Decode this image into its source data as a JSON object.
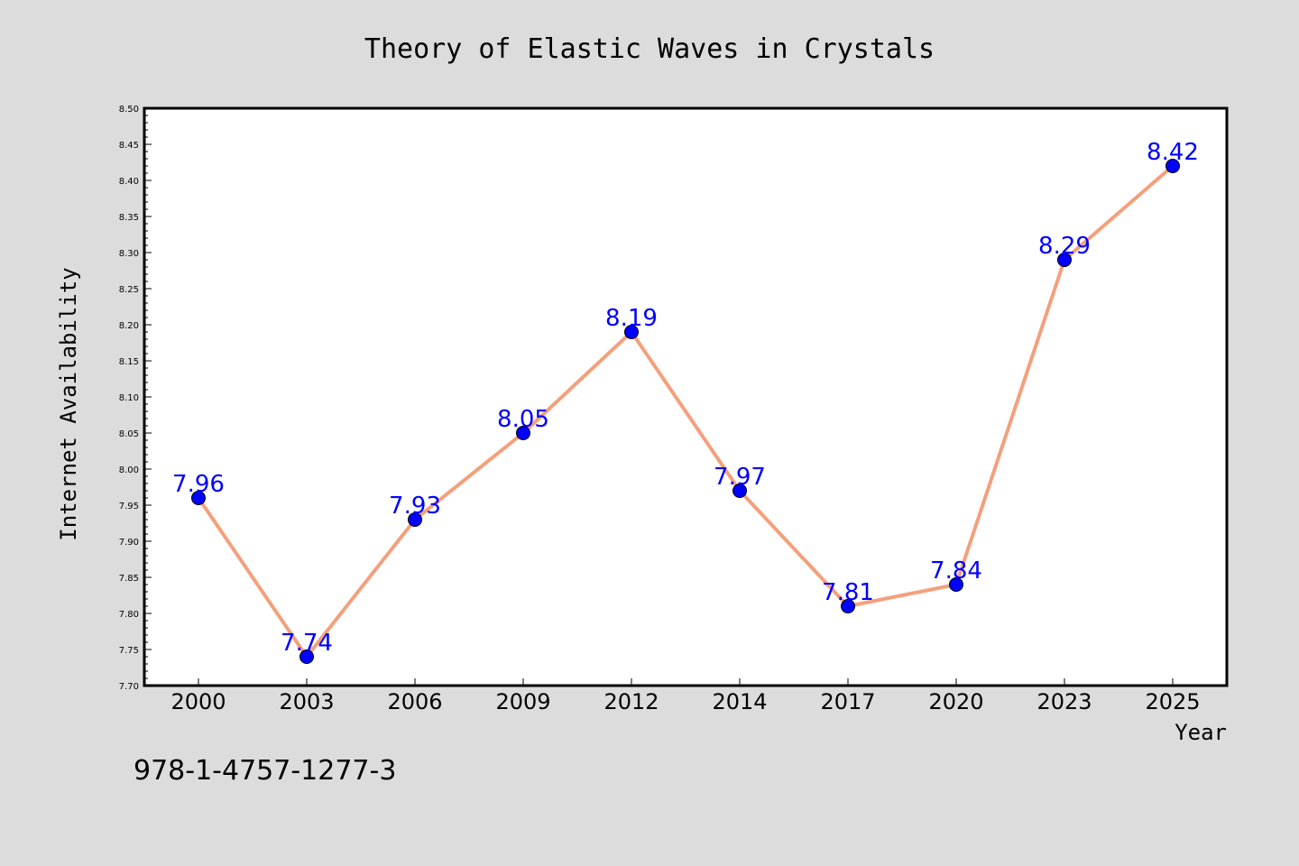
{
  "chart_data": {
    "type": "line",
    "title": "Theory of Elastic Waves in Crystals",
    "xlabel": "Year",
    "ylabel": "Internet Availability",
    "categories": [
      "2000",
      "2003",
      "2006",
      "2009",
      "2012",
      "2014",
      "2017",
      "2020",
      "2023",
      "2025"
    ],
    "series": [
      {
        "values": [
          7.96,
          7.74,
          7.93,
          8.05,
          8.19,
          7.97,
          7.81,
          7.84,
          8.29,
          8.42
        ]
      }
    ],
    "data_labels": [
      "7.96",
      "7.74",
      "7.93",
      "8.05",
      "8.19",
      "7.97",
      "7.81",
      "7.84",
      "8.29",
      "8.42"
    ],
    "ylim": [
      7.7,
      8.5
    ],
    "yticks": [
      "7.70",
      "7.75",
      "7.80",
      "7.85",
      "7.90",
      "7.95",
      "8.00",
      "8.05",
      "8.10",
      "8.15",
      "8.20",
      "8.25",
      "8.30",
      "8.35",
      "8.40",
      "8.45",
      "8.50"
    ],
    "grid": false,
    "legend": "none",
    "colors": {
      "line": "#f4a07c",
      "marker_fill": "#0000ff",
      "marker_edge": "#000000",
      "data_label": "#0000ff",
      "plot_background": "#ffffff",
      "figure_background": "#dcdcdc"
    }
  },
  "footer": {
    "isbn": "978-1-4757-1277-3"
  }
}
